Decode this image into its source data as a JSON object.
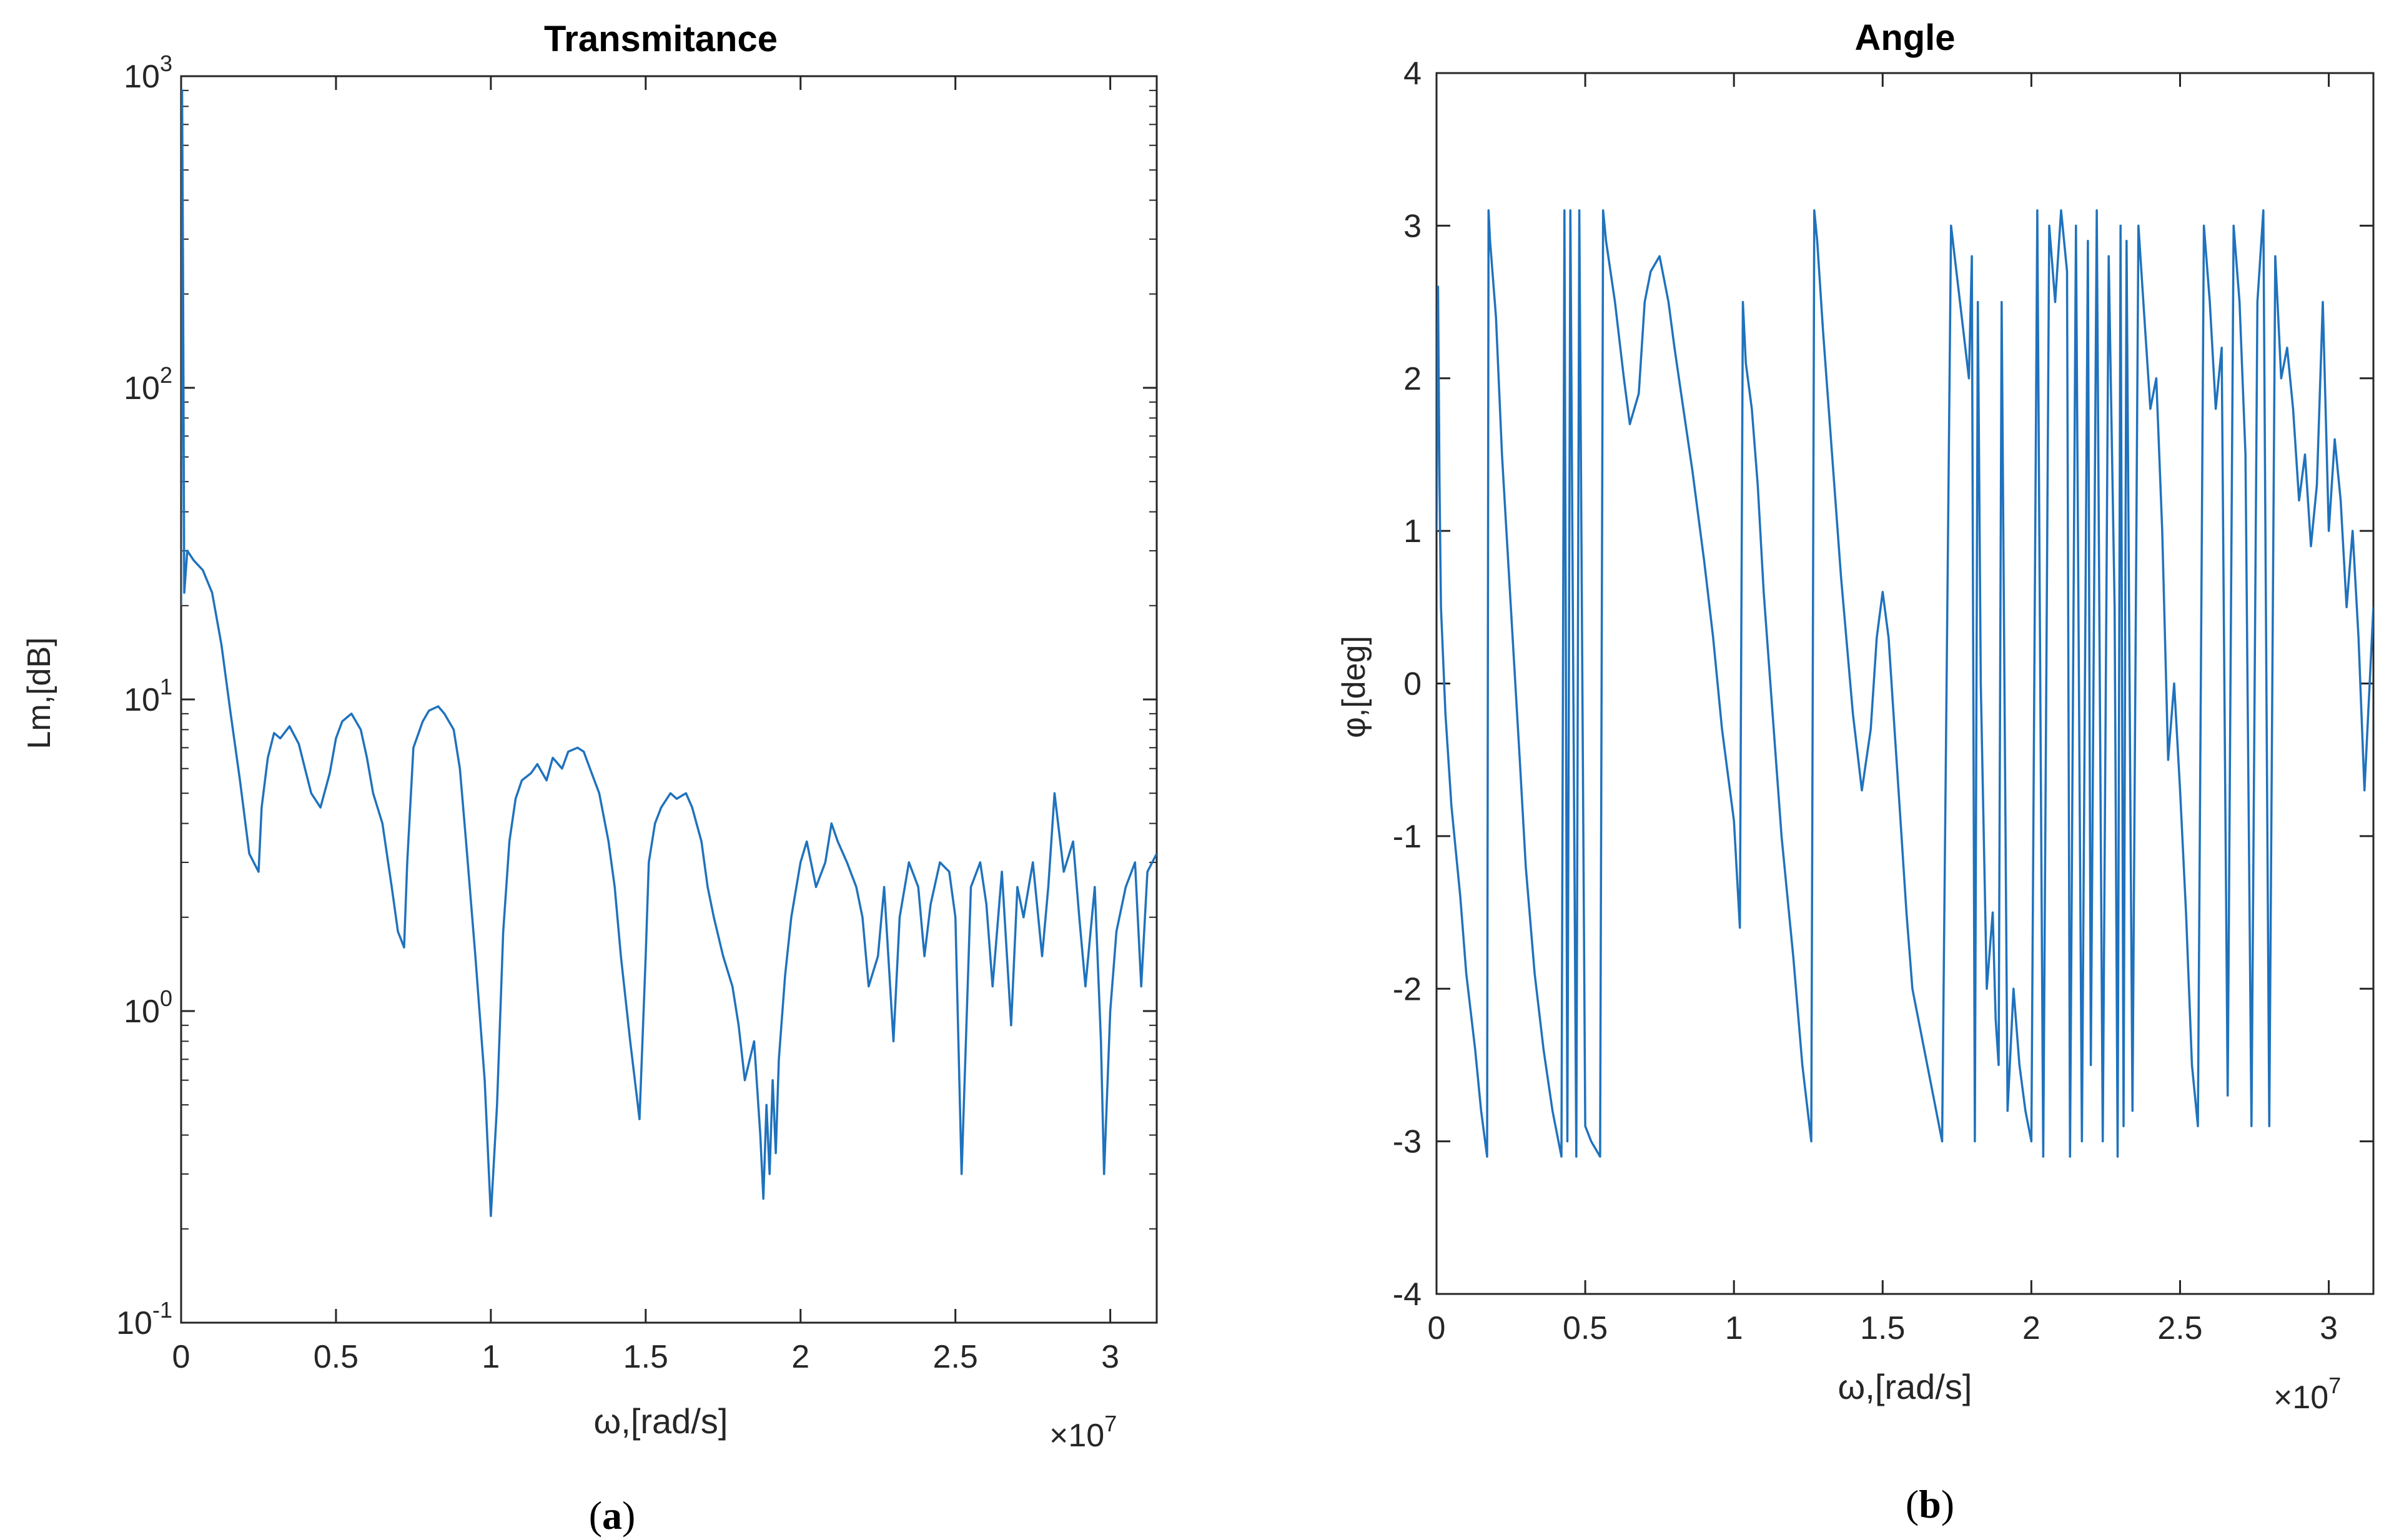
{
  "figure": {
    "line_color": "#1f72bd",
    "axes_color": "#262626"
  },
  "chart_data": [
    {
      "panel": "a",
      "caption": "(a)",
      "caption_letter": "a",
      "type": "line",
      "title": "Transmitance",
      "xlabel": "ω,[rad/s]",
      "ylabel": "Lm,[dB]",
      "x_multiplier": "×10",
      "x_multiplier_exp": "7",
      "xlim": [
        0,
        3.15
      ],
      "ylim": [
        0.1,
        1000
      ],
      "yscale": "log",
      "xticks": [
        0,
        0.5,
        1,
        1.5,
        2,
        2.5,
        3
      ],
      "xtick_labels": [
        "0",
        "0.5",
        "1",
        "1.5",
        "2",
        "2.5",
        "3"
      ],
      "yticks": [
        0.1,
        1,
        10,
        100,
        1000
      ],
      "ytick_labels": [
        {
          "base": "10",
          "exp": "-1"
        },
        {
          "base": "10",
          "exp": "0"
        },
        {
          "base": "10",
          "exp": "1"
        },
        {
          "base": "10",
          "exp": "2"
        },
        {
          "base": "10",
          "exp": "3"
        }
      ],
      "series": [
        {
          "name": "Transmitance",
          "x": [
            0,
            0.003,
            0.006,
            0.01,
            0.02,
            0.04,
            0.07,
            0.1,
            0.13,
            0.16,
            0.19,
            0.22,
            0.25,
            0.26,
            0.28,
            0.3,
            0.32,
            0.35,
            0.38,
            0.4,
            0.42,
            0.45,
            0.48,
            0.5,
            0.52,
            0.55,
            0.58,
            0.6,
            0.62,
            0.65,
            0.68,
            0.7,
            0.72,
            0.73,
            0.75,
            0.78,
            0.8,
            0.83,
            0.85,
            0.88,
            0.9,
            0.92,
            0.95,
            0.98,
            1.0,
            1.02,
            1.04,
            1.06,
            1.08,
            1.1,
            1.13,
            1.15,
            1.18,
            1.2,
            1.23,
            1.25,
            1.28,
            1.3,
            1.32,
            1.35,
            1.38,
            1.4,
            1.42,
            1.45,
            1.48,
            1.5,
            1.51,
            1.53,
            1.55,
            1.58,
            1.6,
            1.63,
            1.65,
            1.68,
            1.7,
            1.72,
            1.75,
            1.78,
            1.8,
            1.82,
            1.85,
            1.87,
            1.88,
            1.89,
            1.9,
            1.91,
            1.92,
            1.93,
            1.95,
            1.97,
            2.0,
            2.02,
            2.05,
            2.08,
            2.1,
            2.12,
            2.15,
            2.18,
            2.2,
            2.22,
            2.25,
            2.27,
            2.3,
            2.32,
            2.35,
            2.38,
            2.4,
            2.42,
            2.45,
            2.48,
            2.5,
            2.52,
            2.55,
            2.58,
            2.6,
            2.62,
            2.65,
            2.68,
            2.7,
            2.72,
            2.75,
            2.78,
            2.8,
            2.82,
            2.85,
            2.88,
            2.9,
            2.92,
            2.95,
            2.97,
            2.98,
            3.0,
            3.02,
            3.05,
            3.08,
            3.1,
            3.12,
            3.15
          ],
          "y": [
            20,
            900,
            250,
            22,
            30,
            28,
            26,
            22,
            15,
            9,
            5.5,
            3.2,
            2.8,
            4.5,
            6.5,
            7.8,
            7.5,
            8.2,
            7.2,
            6.0,
            5.0,
            4.5,
            5.8,
            7.5,
            8.5,
            9.0,
            8.0,
            6.5,
            5.0,
            4.0,
            2.5,
            1.8,
            1.6,
            3.0,
            7.0,
            8.5,
            9.2,
            9.5,
            9.0,
            8.0,
            6.0,
            3.5,
            1.5,
            0.6,
            0.22,
            0.5,
            1.8,
            3.5,
            4.8,
            5.5,
            5.8,
            6.2,
            5.5,
            6.5,
            6.0,
            6.8,
            7.0,
            6.8,
            6.0,
            5.0,
            3.5,
            2.5,
            1.5,
            0.8,
            0.45,
            1.5,
            3.0,
            4.0,
            4.5,
            5.0,
            4.8,
            5.0,
            4.5,
            3.5,
            2.5,
            2.0,
            1.5,
            1.2,
            0.9,
            0.6,
            0.8,
            0.4,
            0.25,
            0.5,
            0.3,
            0.6,
            0.35,
            0.7,
            1.3,
            2.0,
            3.0,
            3.5,
            2.5,
            3.0,
            4.0,
            3.5,
            3.0,
            2.5,
            2.0,
            1.2,
            1.5,
            2.5,
            0.8,
            2.0,
            3.0,
            2.5,
            1.5,
            2.2,
            3.0,
            2.8,
            2.0,
            0.3,
            2.5,
            3.0,
            2.2,
            1.2,
            2.8,
            0.9,
            2.5,
            2.0,
            3.0,
            1.5,
            2.5,
            5.0,
            2.8,
            3.5,
            2.0,
            1.2,
            2.5,
            0.8,
            0.3,
            1.0,
            1.8,
            2.5,
            3.0,
            1.2,
            2.8,
            3.2
          ]
        }
      ]
    },
    {
      "panel": "b",
      "caption": "(b)",
      "caption_letter": "b",
      "type": "line",
      "title": "Angle",
      "xlabel": "ω,[rad/s]",
      "ylabel": "φ,[deg]",
      "x_multiplier": "×10",
      "x_multiplier_exp": "7",
      "xlim": [
        0,
        3.15
      ],
      "ylim": [
        -4,
        4
      ],
      "yscale": "linear",
      "xticks": [
        0,
        0.5,
        1,
        1.5,
        2,
        2.5,
        3
      ],
      "xtick_labels": [
        "0",
        "0.5",
        "1",
        "1.5",
        "2",
        "2.5",
        "3"
      ],
      "yticks": [
        -4,
        -3,
        -2,
        -1,
        0,
        1,
        2,
        3,
        4
      ],
      "ytick_labels": [
        "-4",
        "-3",
        "-2",
        "-1",
        "0",
        "1",
        "2",
        "3",
        "4"
      ],
      "series": [
        {
          "name": "Angle",
          "x": [
            0,
            0.005,
            0.01,
            0.015,
            0.03,
            0.05,
            0.08,
            0.1,
            0.13,
            0.15,
            0.17,
            0.175,
            0.18,
            0.2,
            0.22,
            0.25,
            0.28,
            0.3,
            0.33,
            0.36,
            0.39,
            0.42,
            0.43,
            0.44,
            0.45,
            0.46,
            0.47,
            0.48,
            0.5,
            0.52,
            0.55,
            0.56,
            0.57,
            0.6,
            0.63,
            0.65,
            0.68,
            0.7,
            0.72,
            0.75,
            0.78,
            0.8,
            0.83,
            0.86,
            0.9,
            0.93,
            0.96,
            1.0,
            1.02,
            1.03,
            1.04,
            1.06,
            1.08,
            1.1,
            1.13,
            1.16,
            1.2,
            1.23,
            1.26,
            1.27,
            1.28,
            1.3,
            1.33,
            1.36,
            1.4,
            1.43,
            1.46,
            1.48,
            1.5,
            1.52,
            1.54,
            1.56,
            1.58,
            1.6,
            1.63,
            1.66,
            1.7,
            1.73,
            1.76,
            1.79,
            1.8,
            1.81,
            1.82,
            1.83,
            1.85,
            1.87,
            1.88,
            1.89,
            1.9,
            1.92,
            1.94,
            1.96,
            1.98,
            2.0,
            2.02,
            2.04,
            2.06,
            2.08,
            2.1,
            2.12,
            2.13,
            2.15,
            2.17,
            2.19,
            2.2,
            2.22,
            2.24,
            2.26,
            2.28,
            2.29,
            2.3,
            2.31,
            2.32,
            2.34,
            2.36,
            2.38,
            2.4,
            2.42,
            2.44,
            2.46,
            2.48,
            2.5,
            2.52,
            2.54,
            2.56,
            2.58,
            2.6,
            2.62,
            2.64,
            2.66,
            2.68,
            2.7,
            2.72,
            2.74,
            2.76,
            2.78,
            2.8,
            2.82,
            2.84,
            2.86,
            2.88,
            2.9,
            2.92,
            2.94,
            2.96,
            2.98,
            3.0,
            3.02,
            3.04,
            3.06,
            3.08,
            3.1,
            3.12,
            3.15
          ],
          "y": [
            1.0,
            2.6,
            1.3,
            0.5,
            -0.2,
            -0.8,
            -1.4,
            -1.9,
            -2.4,
            -2.8,
            -3.1,
            3.1,
            2.9,
            2.4,
            1.5,
            0.5,
            -0.5,
            -1.2,
            -1.9,
            -2.4,
            -2.8,
            -3.1,
            3.1,
            -3.0,
            3.1,
            0.0,
            -3.1,
            3.1,
            -2.9,
            -3.0,
            -3.1,
            3.1,
            2.9,
            2.5,
            2.0,
            1.7,
            1.9,
            2.5,
            2.7,
            2.8,
            2.5,
            2.2,
            1.8,
            1.4,
            0.8,
            0.3,
            -0.3,
            -0.9,
            -1.6,
            2.5,
            2.1,
            1.8,
            1.3,
            0.6,
            -0.2,
            -1.0,
            -1.8,
            -2.5,
            -3.0,
            3.1,
            2.9,
            2.3,
            1.5,
            0.7,
            -0.2,
            -0.7,
            -0.3,
            0.3,
            0.6,
            0.3,
            -0.3,
            -0.9,
            -1.5,
            -2.0,
            -2.3,
            -2.6,
            -3.0,
            3.0,
            2.5,
            2.0,
            2.8,
            -3.0,
            2.5,
            0.0,
            -2.0,
            -1.5,
            -2.2,
            -2.5,
            2.5,
            -2.8,
            -2.0,
            -2.5,
            -2.8,
            -3.0,
            3.1,
            -3.1,
            3.0,
            2.5,
            3.1,
            2.7,
            -3.1,
            3.0,
            -3.0,
            2.9,
            -2.5,
            3.1,
            -3.0,
            2.8,
            0.5,
            -3.1,
            3.0,
            -2.9,
            2.9,
            -2.8,
            3.0,
            2.4,
            1.8,
            2.0,
            1.0,
            -0.5,
            0.0,
            -0.7,
            -1.5,
            -2.5,
            -2.9,
            3.0,
            2.5,
            1.8,
            2.2,
            -2.7,
            3.0,
            2.5,
            1.5,
            -2.9,
            2.5,
            3.1,
            -2.9,
            2.8,
            2.0,
            2.2,
            1.8,
            1.2,
            1.5,
            0.9,
            1.3,
            2.5,
            1.0,
            1.6,
            1.2,
            0.5,
            1.0,
            0.3,
            -0.7,
            0.5
          ]
        }
      ]
    }
  ]
}
